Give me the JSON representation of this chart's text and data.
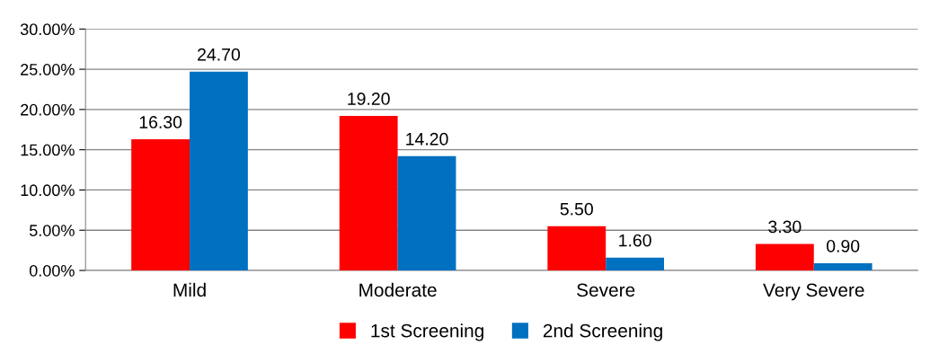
{
  "chart_data": {
    "type": "bar",
    "categories": [
      "Mild",
      "Moderate",
      "Severe",
      "Very Severe"
    ],
    "series": [
      {
        "name": "1st Screening",
        "color": "#ff0000",
        "values": [
          16.3,
          19.2,
          5.5,
          3.3
        ],
        "value_labels": [
          "16.30",
          "19.20",
          "5.50",
          "3.30"
        ]
      },
      {
        "name": "2nd Screening",
        "color": "#0070c0",
        "values": [
          24.7,
          14.2,
          1.6,
          0.9
        ],
        "value_labels": [
          "24.70",
          "14.20",
          "1.60",
          "0.90"
        ]
      }
    ],
    "ylim": [
      0,
      30
    ],
    "yticks": [
      {
        "value": 0,
        "label": "0.00%"
      },
      {
        "value": 5,
        "label": "5.00%"
      },
      {
        "value": 10,
        "label": "10.00%"
      },
      {
        "value": 15,
        "label": "15.00%"
      },
      {
        "value": 20,
        "label": "20.00%"
      },
      {
        "value": 25,
        "label": "25.00%"
      },
      {
        "value": 30,
        "label": "30.00%"
      }
    ],
    "grid": "y",
    "legend": "bottom"
  }
}
